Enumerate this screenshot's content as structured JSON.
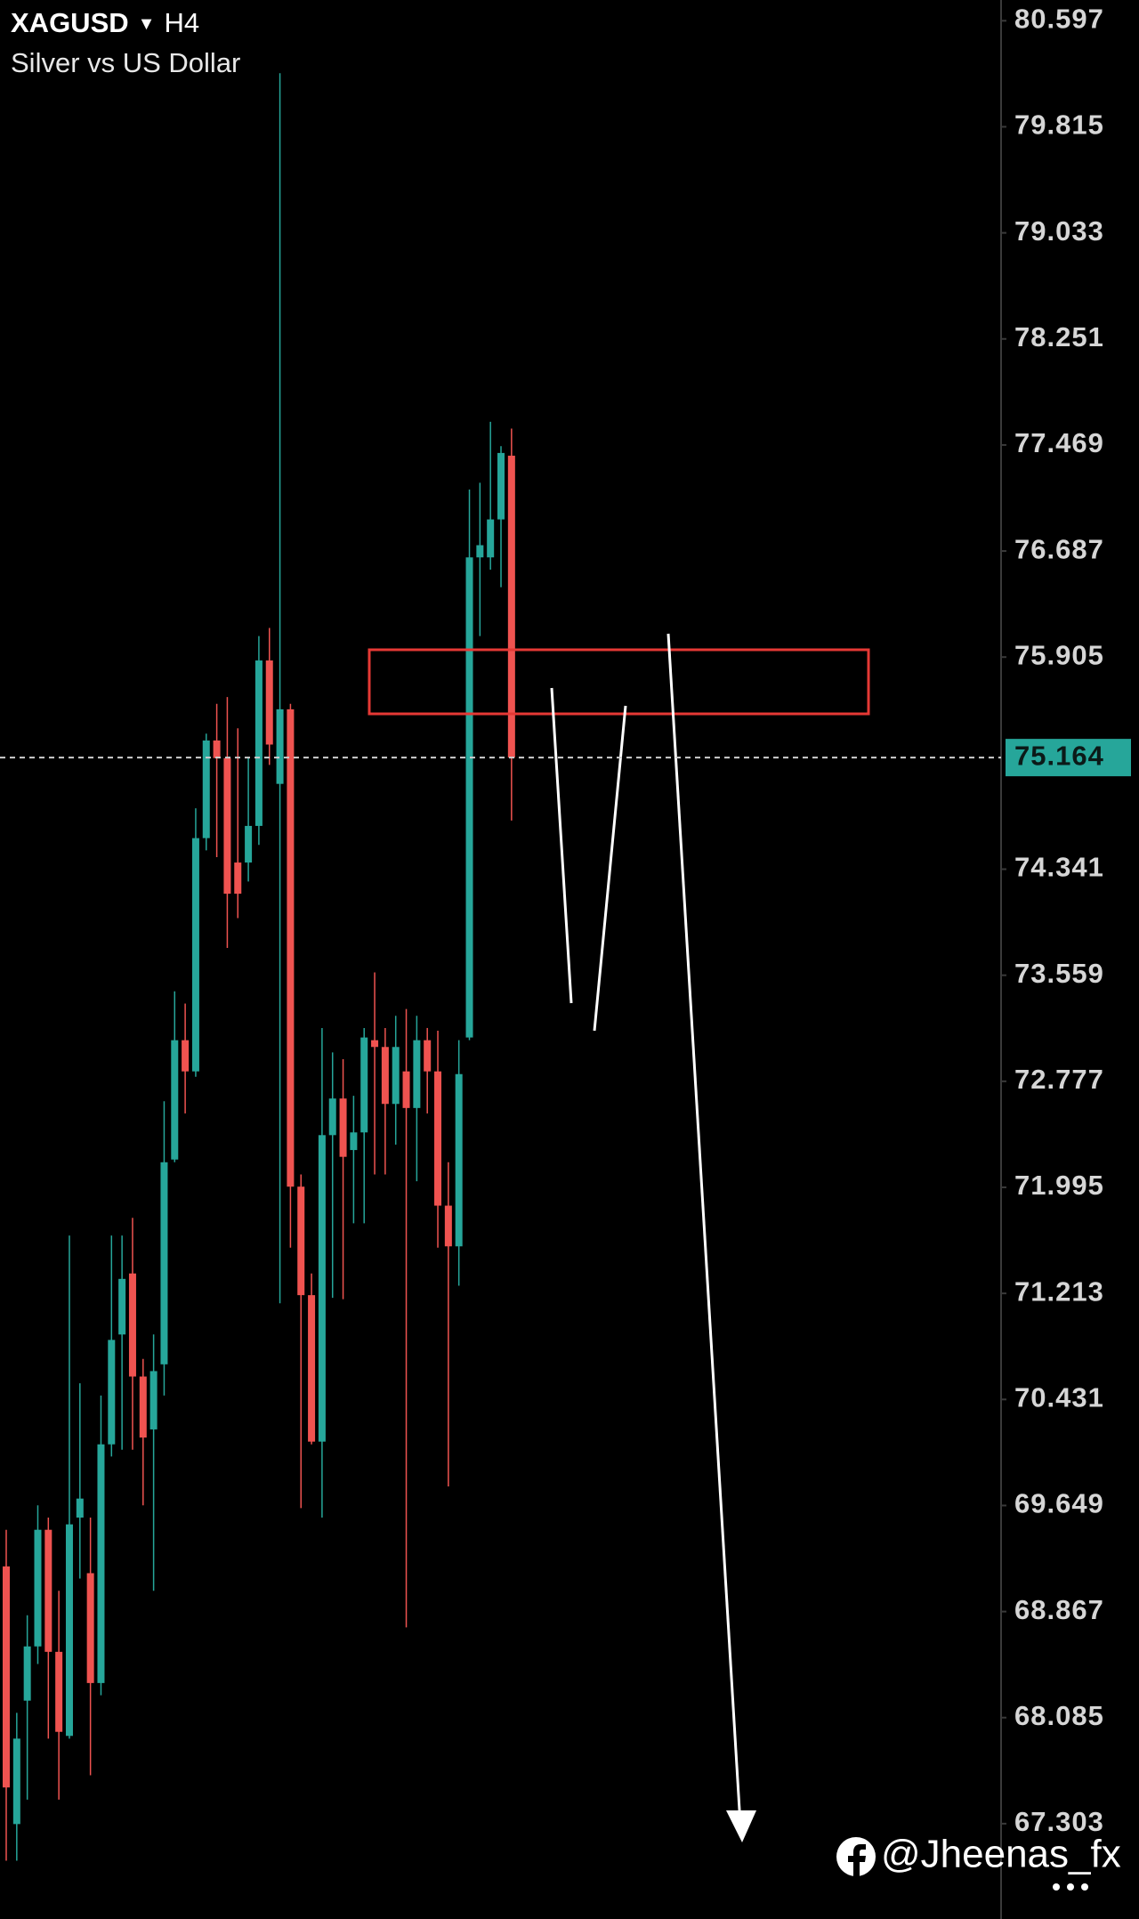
{
  "chart_data": {
    "type": "candlestick",
    "symbol": "XAGUSD",
    "timeframe": "H4",
    "description": "Silver vs US Dollar",
    "watermark": "@Jheenas_fx",
    "up_color": "#26a69a",
    "down_color": "#ef5350",
    "ylim": [
      66.6,
      80.75
    ],
    "yticks": [
      80.597,
      79.815,
      79.033,
      78.251,
      77.469,
      76.687,
      75.905,
      74.341,
      73.559,
      72.777,
      71.995,
      71.213,
      70.431,
      69.649,
      68.867,
      68.085,
      67.303
    ],
    "current_price": 75.164,
    "open": [
      69.2,
      67.3,
      68.21,
      68.61,
      69.47,
      68.57,
      67.95,
      69.56,
      69.15,
      68.34,
      70.1,
      70.91,
      71.36,
      70.6,
      70.21,
      70.69,
      72.2,
      73.08,
      72.85,
      74.57,
      75.29,
      75.16,
      74.39,
      74.39,
      74.66,
      75.88,
      74.97,
      75.52,
      72.0,
      71.2,
      70.12,
      72.38,
      72.65,
      72.27,
      72.4,
      73.08,
      73.03,
      72.61,
      72.85,
      72.58,
      73.08,
      72.85,
      71.86,
      71.56,
      73.1,
      76.64,
      76.64,
      76.92,
      77.39
    ],
    "high": [
      69.47,
      68.12,
      68.84,
      69.65,
      69.56,
      69.02,
      71.64,
      70.55,
      69.56,
      70.46,
      71.64,
      71.64,
      71.77,
      70.73,
      70.91,
      72.63,
      73.44,
      73.35,
      74.79,
      75.34,
      75.56,
      75.61,
      75.38,
      75.16,
      76.06,
      76.12,
      80.21,
      75.56,
      72.09,
      71.36,
      73.17,
      72.99,
      72.94,
      72.67,
      73.17,
      73.58,
      73.17,
      73.26,
      73.31,
      73.26,
      73.17,
      73.15,
      72.18,
      73.08,
      77.14,
      77.19,
      77.64,
      77.46,
      77.59
    ],
    "low": [
      67.03,
      67.03,
      67.48,
      68.48,
      67.93,
      67.48,
      67.93,
      69.11,
      67.66,
      68.25,
      70.01,
      70.06,
      70.06,
      69.65,
      69.02,
      70.46,
      72.18,
      72.54,
      72.81,
      74.48,
      74.43,
      73.76,
      73.98,
      74.25,
      74.52,
      75.11,
      71.14,
      71.55,
      69.63,
      70.1,
      69.56,
      71.18,
      71.17,
      71.73,
      71.73,
      72.09,
      72.09,
      72.31,
      68.75,
      72.04,
      72.54,
      71.55,
      69.79,
      71.27,
      73.08,
      76.06,
      76.55,
      76.42,
      74.7
    ],
    "close": [
      67.57,
      67.93,
      68.61,
      69.47,
      68.57,
      67.98,
      69.51,
      69.7,
      68.34,
      70.1,
      70.87,
      71.32,
      70.6,
      70.15,
      70.64,
      72.18,
      73.08,
      72.85,
      74.57,
      75.29,
      75.16,
      74.16,
      74.16,
      74.66,
      75.88,
      75.26,
      75.52,
      72.0,
      71.2,
      70.12,
      72.38,
      72.65,
      72.22,
      72.4,
      73.1,
      73.03,
      72.61,
      73.03,
      72.58,
      73.08,
      72.85,
      71.86,
      71.56,
      72.83,
      76.64,
      76.73,
      76.92,
      77.41,
      75.164
    ]
  }
}
